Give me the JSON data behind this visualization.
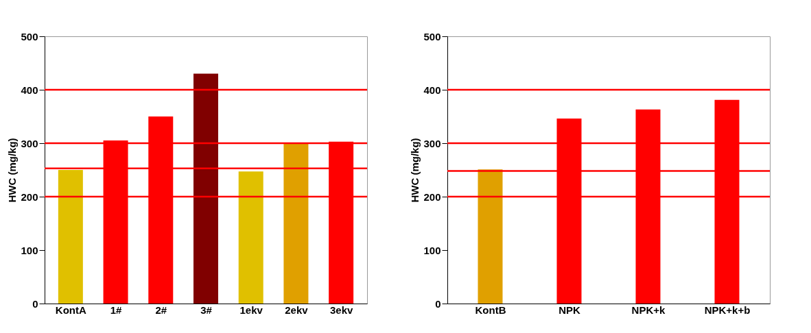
{
  "chart_data": [
    {
      "type": "bar",
      "ylabel": "HWC (mg/kg)",
      "categories": [
        "KontA",
        "1#",
        "2#",
        "3#",
        "1ekv",
        "2ekv",
        "3ekv"
      ],
      "values": [
        250,
        305,
        350,
        430,
        247,
        300,
        303
      ],
      "colors": [
        "#e0c000",
        "#ff0000",
        "#ff0000",
        "#800000",
        "#e0c000",
        "#e0a000",
        "#ff0000"
      ],
      "ylim": [
        0,
        500
      ],
      "yticks": [
        0,
        100,
        200,
        300,
        400,
        500
      ],
      "grid": false,
      "ref_lines": [
        {
          "axis": "y",
          "value": 400,
          "color": "#ff0000"
        },
        {
          "axis": "y",
          "value": 300,
          "color": "#ff0000"
        },
        {
          "axis": "y",
          "value": 253,
          "color": "#ff0000"
        },
        {
          "axis": "y",
          "value": 200,
          "color": "#ff0000"
        }
      ]
    },
    {
      "type": "bar",
      "ylabel": "HWC (mg/kg)",
      "categories": [
        "KontB",
        "NPK",
        "NPK+k",
        "NPK+k+b"
      ],
      "values": [
        251,
        346,
        363,
        381
      ],
      "colors": [
        "#e0a000",
        "#ff0000",
        "#ff0000",
        "#ff0000"
      ],
      "ylim": [
        0,
        500
      ],
      "yticks": [
        0,
        100,
        200,
        300,
        400,
        500
      ],
      "grid": false,
      "ref_lines": [
        {
          "axis": "y",
          "value": 400,
          "color": "#ff0000"
        },
        {
          "axis": "y",
          "value": 300,
          "color": "#ff0000"
        },
        {
          "axis": "y",
          "value": 248,
          "color": "#ff0000"
        },
        {
          "axis": "y",
          "value": 200,
          "color": "#ff0000"
        }
      ]
    }
  ]
}
